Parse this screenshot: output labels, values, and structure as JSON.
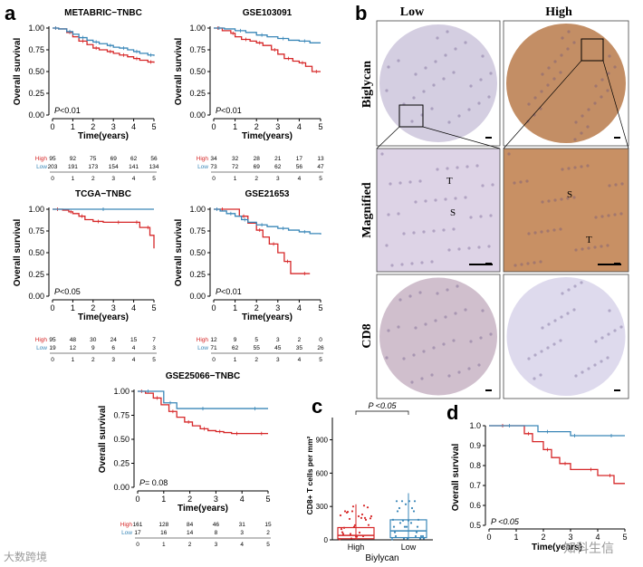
{
  "panel_labels": {
    "a": "a",
    "b": "b",
    "c": "c",
    "d": "d"
  },
  "common": {
    "y_label": "Overall survival",
    "x_label": "Time(years)",
    "high": "High",
    "low": "Low"
  },
  "colors": {
    "high": "#d62728",
    "low": "#3a87b8",
    "tissue_low": "#cdc5dc",
    "tissue_high": "#b87a4a"
  },
  "chart_data": [
    {
      "type": "line",
      "title": "METABRIC−TNBC",
      "p_prefix": "P",
      "p_value": "<0.01",
      "xlim": [
        0,
        5
      ],
      "ylim": [
        0,
        1
      ],
      "xticks": [
        "0",
        "1",
        "2",
        "3",
        "4",
        "5"
      ],
      "yticks": [
        "0.00",
        "0.25",
        "0.50",
        "0.75",
        "1.00"
      ],
      "series": [
        {
          "name": "High",
          "x": [
            0,
            0.3,
            0.7,
            1,
            1.3,
            1.7,
            2,
            2.3,
            2.7,
            3,
            3.3,
            3.7,
            4,
            4.3,
            4.7,
            5
          ],
          "y": [
            1,
            0.99,
            0.95,
            0.9,
            0.85,
            0.81,
            0.77,
            0.75,
            0.73,
            0.71,
            0.69,
            0.67,
            0.65,
            0.63,
            0.61,
            0.6
          ]
        },
        {
          "name": "Low",
          "x": [
            0,
            0.3,
            0.7,
            1,
            1.3,
            1.7,
            2,
            2.3,
            2.7,
            3,
            3.3,
            3.7,
            4,
            4.3,
            4.7,
            5
          ],
          "y": [
            1,
            0.99,
            0.96,
            0.93,
            0.89,
            0.86,
            0.84,
            0.82,
            0.8,
            0.78,
            0.77,
            0.75,
            0.73,
            0.71,
            0.69,
            0.68
          ]
        }
      ],
      "risk_table": {
        "High": [
          "95",
          "92",
          "75",
          "69",
          "62",
          "56"
        ],
        "Low": [
          "203",
          "191",
          "173",
          "154",
          "141",
          "134"
        ],
        "x": [
          "0",
          "1",
          "2",
          "3",
          "4",
          "5"
        ]
      }
    },
    {
      "type": "line",
      "title": "GSE103091",
      "p_prefix": "P",
      "p_value": "<0.01",
      "xlim": [
        0,
        5
      ],
      "ylim": [
        0,
        1
      ],
      "xticks": [
        "0",
        "1",
        "2",
        "3",
        "4",
        "5"
      ],
      "yticks": [
        "0.00",
        "0.25",
        "0.50",
        "0.75",
        "1.00"
      ],
      "series": [
        {
          "name": "High",
          "x": [
            0,
            0.4,
            0.8,
            1,
            1.3,
            1.7,
            2,
            2.3,
            2.7,
            3,
            3.3,
            3.7,
            4,
            4.3,
            4.6,
            5
          ],
          "y": [
            1,
            0.97,
            0.94,
            0.9,
            0.87,
            0.85,
            0.83,
            0.8,
            0.75,
            0.7,
            0.65,
            0.62,
            0.6,
            0.56,
            0.5,
            0.5
          ]
        },
        {
          "name": "Low",
          "x": [
            0,
            0.5,
            1,
            1.5,
            2,
            2.5,
            3,
            3.5,
            4,
            4.5,
            5
          ],
          "y": [
            1,
            0.99,
            0.97,
            0.95,
            0.92,
            0.9,
            0.88,
            0.86,
            0.85,
            0.83,
            0.83
          ]
        }
      ],
      "risk_table": {
        "High": [
          "34",
          "32",
          "28",
          "21",
          "17",
          "13"
        ],
        "Low": [
          "73",
          "72",
          "69",
          "62",
          "56",
          "47"
        ],
        "x": [
          "0",
          "1",
          "2",
          "3",
          "4",
          "5"
        ]
      }
    },
    {
      "type": "line",
      "title": "TCGA−TNBC",
      "p_prefix": "P",
      "p_value": "<0.05",
      "xlim": [
        0,
        5
      ],
      "ylim": [
        0,
        1
      ],
      "xticks": [
        "0",
        "1",
        "2",
        "3",
        "4",
        "5"
      ],
      "yticks": [
        "0.00",
        "0.25",
        "0.50",
        "0.75",
        "1.00"
      ],
      "series": [
        {
          "name": "High",
          "x": [
            0,
            0.5,
            0.8,
            1,
            1.3,
            1.6,
            2,
            2.5,
            3,
            3.5,
            4,
            4.3,
            4.6,
            4.8,
            5
          ],
          "y": [
            1,
            0.99,
            0.97,
            0.95,
            0.92,
            0.88,
            0.86,
            0.85,
            0.85,
            0.85,
            0.85,
            0.79,
            0.79,
            0.7,
            0.55
          ]
        },
        {
          "name": "Low",
          "x": [
            0,
            5
          ],
          "y": [
            1,
            1
          ]
        }
      ],
      "risk_table": {
        "High": [
          "95",
          "48",
          "30",
          "24",
          "15",
          "7"
        ],
        "Low": [
          "19",
          "12",
          "9",
          "6",
          "4",
          "3"
        ],
        "x": [
          "0",
          "1",
          "2",
          "3",
          "4",
          "5"
        ]
      }
    },
    {
      "type": "line",
      "title": "GSE21653",
      "p_prefix": "P",
      "p_value": "<0.01",
      "xlim": [
        0,
        5
      ],
      "ylim": [
        0,
        1
      ],
      "xticks": [
        "0",
        "1",
        "2",
        "3",
        "4",
        "5"
      ],
      "yticks": [
        "0.00",
        "0.25",
        "0.50",
        "0.75",
        "1.00"
      ],
      "series": [
        {
          "name": "High",
          "x": [
            0,
            0.8,
            1.2,
            1.6,
            2,
            2.3,
            2.6,
            3,
            3.3,
            3.6,
            4,
            4.5
          ],
          "y": [
            1,
            1,
            0.92,
            0.84,
            0.76,
            0.68,
            0.6,
            0.5,
            0.4,
            0.26,
            0.26,
            0.26
          ]
        },
        {
          "name": "Low",
          "x": [
            0,
            0.3,
            0.6,
            1,
            1.3,
            1.6,
            2,
            2.5,
            3,
            3.5,
            4,
            4.5,
            5
          ],
          "y": [
            1,
            0.98,
            0.95,
            0.92,
            0.88,
            0.85,
            0.82,
            0.8,
            0.78,
            0.76,
            0.74,
            0.72,
            0.71
          ]
        }
      ],
      "risk_table": {
        "High": [
          "12",
          "9",
          "5",
          "3",
          "2",
          "0"
        ],
        "Low": [
          "71",
          "62",
          "55",
          "45",
          "35",
          "26"
        ],
        "x": [
          "0",
          "1",
          "2",
          "3",
          "4",
          "5"
        ]
      }
    },
    {
      "type": "line",
      "title": "GSE25066−TNBC",
      "p_prefix": "P",
      "p_value": "= 0.08",
      "xlim": [
        0,
        5
      ],
      "ylim": [
        0,
        1
      ],
      "xticks": [
        "0",
        "1",
        "2",
        "3",
        "4",
        "5"
      ],
      "yticks": [
        "0.00",
        "0.25",
        "0.50",
        "0.75",
        "1.00"
      ],
      "series": [
        {
          "name": "High",
          "x": [
            0,
            0.3,
            0.6,
            0.9,
            1.2,
            1.5,
            1.8,
            2.1,
            2.4,
            2.7,
            3,
            3.3,
            3.6,
            4,
            4.5,
            5
          ],
          "y": [
            1,
            0.98,
            0.93,
            0.86,
            0.79,
            0.73,
            0.68,
            0.64,
            0.61,
            0.59,
            0.58,
            0.57,
            0.56,
            0.56,
            0.56,
            0.56
          ]
        },
        {
          "name": "Low",
          "x": [
            0,
            0.8,
            1,
            1.5,
            2,
            3,
            4,
            5
          ],
          "y": [
            1,
            1,
            0.88,
            0.82,
            0.82,
            0.82,
            0.82,
            0.82
          ]
        }
      ],
      "risk_table": {
        "High": [
          "161",
          "128",
          "84",
          "46",
          "31",
          "15"
        ],
        "Low": [
          "17",
          "16",
          "14",
          "8",
          "3",
          "2"
        ],
        "x": [
          "0",
          "1",
          "2",
          "3",
          "4",
          "5"
        ]
      }
    },
    {
      "type": "box",
      "panel": "c",
      "ylabel": "CD8+ T cells per mm²",
      "xlabel": "Biylycan",
      "categories": [
        "High",
        "Low"
      ],
      "yticks": [
        "0",
        "300",
        "600",
        "900"
      ],
      "ylim": [
        0,
        1100
      ],
      "p_text": "P <0.05",
      "boxes": [
        {
          "name": "High",
          "q1": 10,
          "median": 40,
          "q3": 110,
          "whisker_low": 0,
          "whisker_high": 320
        },
        {
          "name": "Low",
          "q1": 20,
          "median": 80,
          "q3": 180,
          "whisker_low": 0,
          "whisker_high": 420
        }
      ]
    },
    {
      "type": "line",
      "panel": "d",
      "ylabel": "Overall survival",
      "xlabel": "Time(years)",
      "p_text": "P <0.05",
      "xlim": [
        0,
        5
      ],
      "ylim": [
        0.5,
        1
      ],
      "xticks": [
        "0",
        "1",
        "2",
        "3",
        "4",
        "5"
      ],
      "yticks": [
        "0.5",
        "0.6",
        "0.7",
        "0.8",
        "0.9",
        "1.0"
      ],
      "series": [
        {
          "name": "High",
          "x": [
            0,
            1,
            1.3,
            1.6,
            2,
            2.3,
            2.6,
            3,
            3.5,
            4,
            4.3,
            4.6,
            5
          ],
          "y": [
            1,
            1,
            0.96,
            0.92,
            0.88,
            0.84,
            0.81,
            0.78,
            0.78,
            0.75,
            0.75,
            0.71,
            0.71
          ]
        },
        {
          "name": "Low",
          "x": [
            0,
            1.5,
            1.8,
            2.5,
            3,
            3.3,
            4,
            5
          ],
          "y": [
            1,
            1,
            0.97,
            0.97,
            0.95,
            0.95,
            0.95,
            0.95
          ]
        }
      ]
    }
  ],
  "ihc": {
    "col_low": "Low",
    "col_high": "High",
    "row1": "Biglycan",
    "row2": "Magnified",
    "row3": "CD8",
    "label_T": "T",
    "label_S": "S"
  },
  "watermark_left": "大数跨境",
  "watermark_right": "知科生信"
}
